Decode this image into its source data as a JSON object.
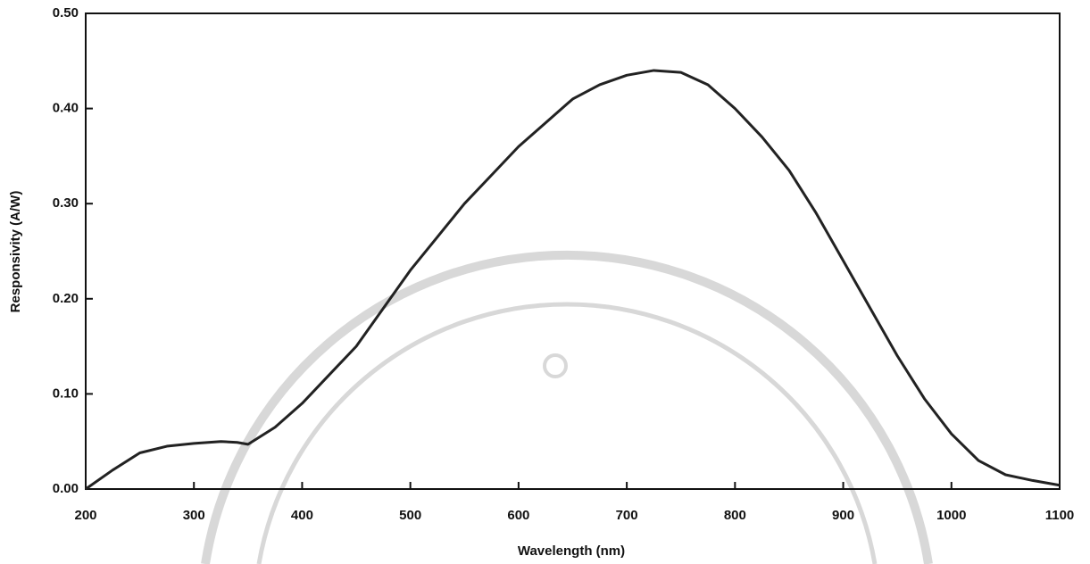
{
  "chart_data": {
    "type": "line",
    "x_label": "Wavelength (nm)",
    "y_label": "Responsivity (A/W)",
    "x": [
      200,
      225,
      250,
      275,
      300,
      325,
      340,
      350,
      375,
      400,
      425,
      450,
      475,
      500,
      525,
      550,
      575,
      600,
      625,
      650,
      675,
      700,
      725,
      750,
      775,
      800,
      825,
      850,
      875,
      900,
      925,
      950,
      975,
      1000,
      1025,
      1050,
      1075,
      1100
    ],
    "series": [
      {
        "color": "#222222",
        "values": [
          0,
          0.02,
          0.038,
          0.045,
          0.048,
          0.05,
          0.049,
          0.047,
          0.065,
          0.09,
          0.12,
          0.15,
          0.19,
          0.23,
          0.265,
          0.3,
          0.33,
          0.36,
          0.385,
          0.41,
          0.425,
          0.435,
          0.44,
          0.438,
          0.425,
          0.4,
          0.37,
          0.335,
          0.29,
          0.24,
          0.19,
          0.14,
          0.095,
          0.058,
          0.03,
          0.015,
          0.009,
          0.004
        ]
      }
    ],
    "xlim": [
      200,
      1100
    ],
    "ylim": [
      0,
      0.5
    ],
    "xticks": [
      200,
      300,
      400,
      500,
      600,
      700,
      800,
      900,
      1000,
      1100
    ],
    "yticks": [
      {
        "value": 0,
        "label": "0.00"
      },
      {
        "value": 0.1,
        "label": "0.10"
      },
      {
        "value": 0.2,
        "label": "0.20"
      },
      {
        "value": 0.3,
        "label": "0.30"
      },
      {
        "value": 0.4,
        "label": "0.40"
      },
      {
        "value": 0.5,
        "label": "0.50"
      }
    ]
  }
}
